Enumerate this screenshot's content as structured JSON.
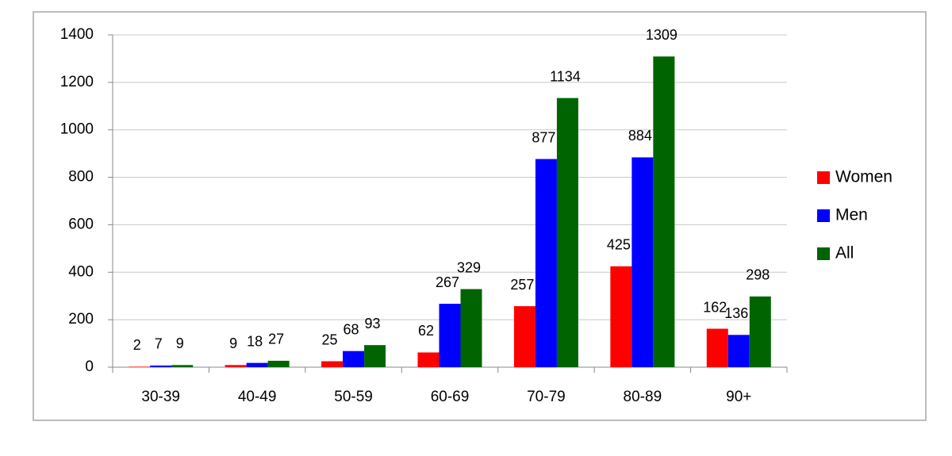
{
  "chart_data": {
    "type": "bar",
    "categories": [
      "30-39",
      "40-49",
      "50-59",
      "60-69",
      "70-79",
      "80-89",
      "90+"
    ],
    "series": [
      {
        "name": "Women",
        "color": "#ff0000",
        "values": [
          2,
          9,
          25,
          62,
          257,
          425,
          162
        ]
      },
      {
        "name": "Men",
        "color": "#0000ff",
        "values": [
          7,
          18,
          68,
          267,
          877,
          884,
          136
        ]
      },
      {
        "name": "All",
        "color": "#006400",
        "values": [
          9,
          27,
          93,
          329,
          1134,
          1309,
          298
        ]
      }
    ],
    "ylim": [
      0,
      1400
    ],
    "yticks": [
      0,
      200,
      400,
      600,
      800,
      1000,
      1200,
      1400
    ],
    "grid": true,
    "legend": "right"
  }
}
